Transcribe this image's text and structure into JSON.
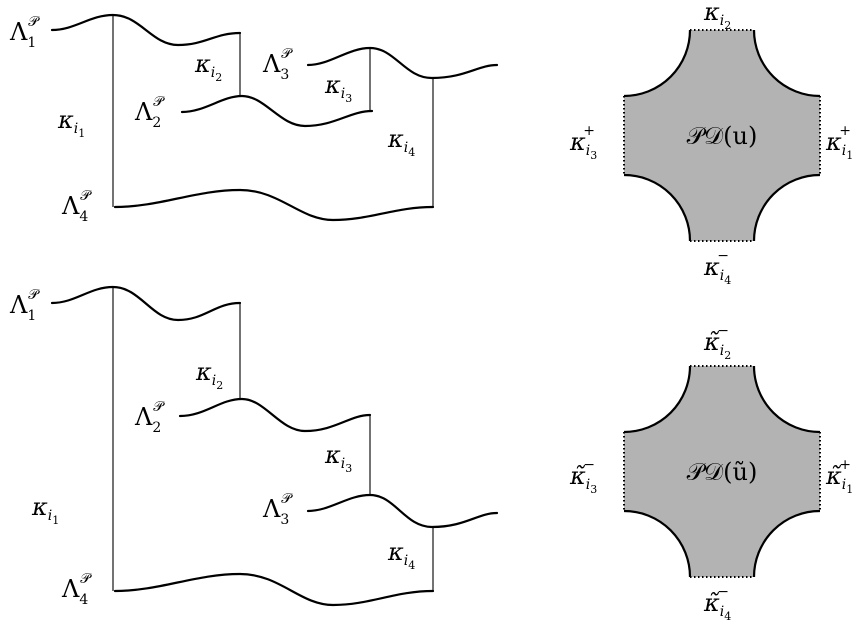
{
  "top": {
    "lambda1": {
      "base": "Λ",
      "sub": "1",
      "sup": "𝒫"
    },
    "lambda2": {
      "base": "Λ",
      "sub": "2",
      "sup": "𝒫"
    },
    "lambda3": {
      "base": "Λ",
      "sub": "3",
      "sup": "𝒫"
    },
    "lambda4": {
      "base": "Λ",
      "sub": "4",
      "sup": "𝒫"
    },
    "kappa_i1": {
      "base": "κ",
      "sub": "i",
      "subsub": "1"
    },
    "kappa_i2": {
      "base": "κ",
      "sub": "i",
      "subsub": "2"
    },
    "kappa_i3": {
      "base": "κ",
      "sub": "i",
      "subsub": "3"
    },
    "kappa_i4": {
      "base": "κ",
      "sub": "i",
      "subsub": "4"
    }
  },
  "bottom": {
    "lambda1": {
      "base": "Λ",
      "sub": "1",
      "sup": "𝒫"
    },
    "lambda2": {
      "base": "Λ",
      "sub": "2",
      "sup": "𝒫"
    },
    "lambda3": {
      "base": "Λ",
      "sub": "3",
      "sup": "𝒫"
    },
    "lambda4": {
      "base": "Λ",
      "sub": "4",
      "sup": "𝒫"
    },
    "kappa_i1": {
      "base": "κ",
      "sub": "i",
      "subsub": "1"
    },
    "kappa_i2": {
      "base": "κ",
      "sub": "i",
      "subsub": "2"
    },
    "kappa_i3": {
      "base": "κ",
      "sub": "i",
      "subsub": "3"
    },
    "kappa_i4": {
      "base": "κ",
      "sub": "i",
      "subsub": "4"
    }
  },
  "polygon_top": {
    "center": "𝒫𝒟(u)",
    "top": {
      "base": "κ",
      "sub": "i",
      "subsub": "2",
      "sup": ""
    },
    "right": {
      "base": "κ",
      "sub": "i",
      "subsub": "1",
      "sup": "+"
    },
    "left": {
      "base": "κ",
      "sub": "i",
      "subsub": "3",
      "sup": "+"
    },
    "bottom": {
      "base": "κ",
      "sub": "i",
      "subsub": "4",
      "sup": "−"
    }
  },
  "polygon_bottom": {
    "center": "𝒫𝒟(ũ)",
    "top": {
      "base": "κ̃",
      "sub": "i",
      "subsub": "2",
      "sup": "−"
    },
    "right": {
      "base": "κ̃",
      "sub": "i",
      "subsub": "1",
      "sup": "+"
    },
    "left": {
      "base": "κ̃",
      "sub": "i",
      "subsub": "3",
      "sup": "−"
    },
    "bottom": {
      "base": "κ̃",
      "sub": "i",
      "subsub": "4",
      "sup": "−"
    }
  }
}
